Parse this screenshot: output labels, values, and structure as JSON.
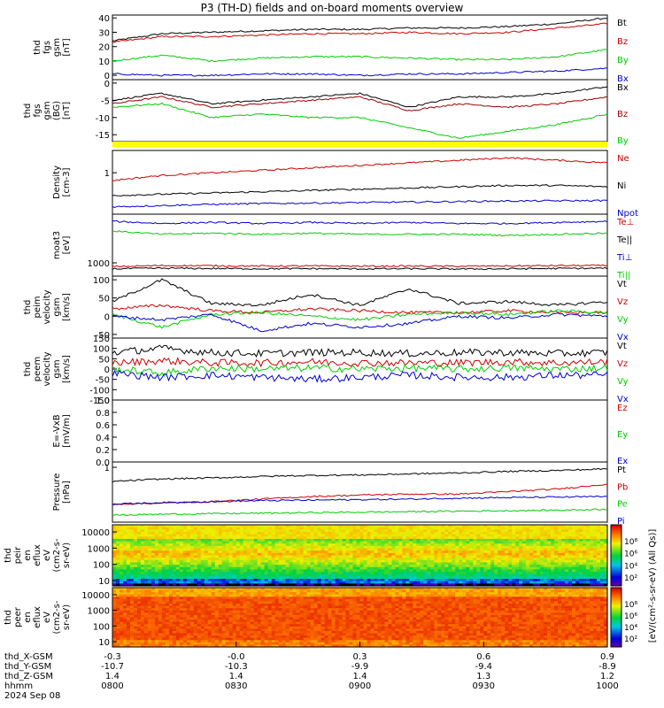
{
  "title": "P3 (TH-D) fields and on-board moments overview",
  "chart_data": [
    {
      "type": "line",
      "ylabel": [
        "thd",
        "fgs",
        "gsm",
        "[nT]"
      ],
      "yticks": [
        "40",
        "30",
        "20",
        "10",
        "0"
      ],
      "ylim": [
        -3,
        42
      ],
      "series": [
        {
          "name": "Bt",
          "color": "#000000",
          "values": [
            24,
            29,
            30,
            31,
            32,
            32,
            33,
            33,
            34,
            36,
            40
          ]
        },
        {
          "name": "Bz",
          "color": "#cc0000",
          "values": [
            23,
            27,
            27,
            28,
            29,
            29,
            30,
            29,
            30,
            33,
            36
          ]
        },
        {
          "name": "By",
          "color": "#00cc00",
          "values": [
            10,
            14,
            10,
            12,
            13,
            13,
            12,
            11,
            11,
            13,
            18
          ]
        },
        {
          "name": "Bx",
          "color": "#0000cc",
          "values": [
            1,
            0,
            0,
            1,
            1,
            0,
            1,
            1,
            2,
            3,
            5
          ]
        }
      ]
    },
    {
      "type": "line",
      "ylabel": [
        "thd",
        "fgs",
        "gsm",
        "(BG)",
        "[nT]"
      ],
      "yticks": [
        "0",
        "-5",
        "-10",
        "-15"
      ],
      "ylim": [
        -17,
        1
      ],
      "series": [
        {
          "name": "Bx",
          "color": "#000000",
          "values": [
            -5,
            -3,
            -6,
            -5,
            -4,
            -3,
            -7,
            -4,
            -4,
            -3,
            -1
          ]
        },
        {
          "name": "Bz",
          "color": "#990000",
          "values": [
            -6,
            -4,
            -7,
            -6,
            -5,
            -4,
            -8,
            -6,
            -7,
            -6,
            -4
          ]
        },
        {
          "name": "By",
          "color": "#00cc00",
          "values": [
            -7,
            -6,
            -10,
            -9,
            -10,
            -10,
            -13,
            -16,
            -14,
            -12,
            -9
          ]
        }
      ]
    },
    {
      "type": "line",
      "ylabel": [
        "Density",
        "[cm-3]"
      ],
      "yticks": [
        "1"
      ],
      "series": [
        {
          "name": "Ne",
          "color": "#cc0000",
          "values": [
            1.2,
            1.4,
            1.5,
            1.6,
            1.7,
            1.8,
            1.9,
            2.0,
            2.1,
            2.0,
            1.9
          ]
        },
        {
          "name": "Ni",
          "color": "#000000",
          "values": [
            0.6,
            0.65,
            0.7,
            0.75,
            0.8,
            0.85,
            0.9,
            0.95,
            1.0,
            1.0,
            0.95
          ]
        },
        {
          "name": "Npot",
          "color": "#0000cc",
          "values": [
            0.15,
            0.2,
            0.25,
            0.28,
            0.3,
            0.32,
            0.34,
            0.36,
            0.38,
            0.39,
            0.4
          ]
        }
      ]
    },
    {
      "type": "line",
      "ylabel": [
        "moat3",
        "[eV]"
      ],
      "yticks": [
        "1000"
      ],
      "series": [
        {
          "name": "Te⊥",
          "color": "#cc0000",
          "values": [
            1000,
            1100,
            1080,
            1050,
            1060,
            1040,
            1050,
            1030,
            1060,
            1090,
            1100
          ]
        },
        {
          "name": "Te||",
          "color": "#000000",
          "values": [
            800,
            850,
            820,
            800,
            810,
            790,
            800,
            780,
            790,
            830,
            850
          ]
        },
        {
          "name": "Ti⊥",
          "color": "#0000cc",
          "values": [
            5200,
            5000,
            5100,
            5000,
            5100,
            5000,
            5100,
            5000,
            5000,
            5100,
            5200
          ]
        },
        {
          "name": "Ti||",
          "color": "#00cc00",
          "values": [
            4300,
            4000,
            4100,
            4000,
            4100,
            4000,
            4000,
            4000,
            3900,
            4000,
            4100
          ]
        }
      ]
    },
    {
      "type": "line",
      "ylabel": [
        "thd",
        "peim",
        "velocity",
        "gsm",
        "[km/s]"
      ],
      "yticks": [
        "100",
        "50",
        "0",
        "-50"
      ],
      "ylim": [
        -60,
        110
      ],
      "series": [
        {
          "name": "Vt",
          "color": "#000000",
          "values": [
            40,
            100,
            35,
            30,
            60,
            30,
            75,
            35,
            40,
            30,
            40
          ]
        },
        {
          "name": "Vz",
          "color": "#cc0000",
          "values": [
            20,
            30,
            15,
            10,
            20,
            15,
            10,
            10,
            15,
            10,
            10
          ]
        },
        {
          "name": "Vy",
          "color": "#00cc00",
          "values": [
            5,
            -30,
            5,
            10,
            0,
            -10,
            5,
            10,
            5,
            15,
            10
          ]
        },
        {
          "name": "Vx",
          "color": "#0000cc",
          "values": [
            0,
            -10,
            5,
            -40,
            -20,
            -30,
            -20,
            0,
            -5,
            5,
            0
          ]
        }
      ]
    },
    {
      "type": "line",
      "ylabel": [
        "thd",
        "peem",
        "velocity",
        "gsm",
        "[km/s]"
      ],
      "yticks": [
        "150",
        "100",
        "50",
        "0",
        "-50",
        "-100",
        "-150"
      ],
      "ylim": [
        -150,
        150
      ],
      "series": [
        {
          "name": "Vt",
          "color": "#000000",
          "values": [
            80,
            100,
            80,
            75,
            80,
            80,
            75,
            80,
            80,
            75,
            80
          ]
        },
        {
          "name": "Vz",
          "color": "#cc0000",
          "values": [
            30,
            40,
            30,
            30,
            35,
            30,
            30,
            30,
            35,
            30,
            35
          ]
        },
        {
          "name": "Vy",
          "color": "#00cc00",
          "values": [
            0,
            -20,
            5,
            0,
            5,
            0,
            5,
            0,
            5,
            0,
            5
          ]
        },
        {
          "name": "Vx",
          "color": "#0000cc",
          "values": [
            -20,
            -40,
            -30,
            -40,
            -50,
            -40,
            -30,
            -40,
            -40,
            -30,
            -30
          ]
        }
      ]
    },
    {
      "type": "line",
      "ylabel": [
        "E=-VxB",
        "[mV/m]"
      ],
      "yticks": [
        "1.0",
        "0.8",
        "0.6",
        "0.4",
        "0.2",
        "0.0"
      ],
      "ylim": [
        0,
        1
      ],
      "series": [
        {
          "name": "Ez",
          "color": "#cc0000",
          "values": []
        },
        {
          "name": "Ey",
          "color": "#00cc00",
          "values": []
        },
        {
          "name": "Ex",
          "color": "#0000cc",
          "values": []
        }
      ]
    },
    {
      "type": "line",
      "ylabel": [
        "Pressure",
        "[nPa]"
      ],
      "yticks": [
        "1"
      ],
      "series": [
        {
          "name": "Pt",
          "color": "#000000",
          "values": [
            0.75,
            0.8,
            0.82,
            0.85,
            0.87,
            0.88,
            0.9,
            0.92,
            0.95,
            0.97,
            1.0
          ]
        },
        {
          "name": "Pb",
          "color": "#cc0000",
          "values": [
            0.3,
            0.32,
            0.35,
            0.4,
            0.45,
            0.48,
            0.5,
            0.5,
            0.55,
            0.6,
            0.7
          ]
        },
        {
          "name": "Pe",
          "color": "#00cc00",
          "values": [
            0.08,
            0.1,
            0.11,
            0.12,
            0.13,
            0.14,
            0.15,
            0.16,
            0.17,
            0.18,
            0.2
          ]
        },
        {
          "name": "Pi",
          "color": "#0000cc",
          "values": [
            0.3,
            0.33,
            0.35,
            0.37,
            0.38,
            0.39,
            0.4,
            0.42,
            0.43,
            0.44,
            0.45
          ]
        }
      ]
    },
    {
      "type": "heatmap",
      "ylabel": [
        "thd",
        "peir",
        "en",
        "eflux",
        "eV",
        "(cm2-s-",
        "sr-eV)"
      ],
      "yticks": [
        "10000",
        "1000",
        "100",
        "10"
      ],
      "scale": "log"
    },
    {
      "type": "heatmap",
      "ylabel": [
        "thd",
        "peer",
        "en",
        "eflux",
        "eV",
        "(cm2-s-",
        "sr-eV)"
      ],
      "yticks": [
        "10000",
        "1000",
        "100",
        "10"
      ],
      "scale": "log"
    }
  ],
  "colorbar": {
    "label": "[eV/(cm²-s-sr-eV) (All Qs)]",
    "upper_ticks": [
      "10⁸",
      "10⁶",
      "10⁴",
      "10²"
    ],
    "lower_ticks": [
      "10⁸",
      "10⁶",
      "10⁴",
      "10²"
    ]
  },
  "x_axis": {
    "rows": [
      {
        "label": "thd_X-GSM",
        "values": [
          "-0.3",
          "-0.0",
          "0.3",
          "0.6",
          "0.9"
        ]
      },
      {
        "label": "thd_Y-GSM",
        "values": [
          "-10.7",
          "-10.3",
          "-9.9",
          "-9.4",
          "-8.9"
        ]
      },
      {
        "label": "thd_Z-GSM",
        "values": [
          "1.4",
          "1.4",
          "1.4",
          "1.3",
          "1.2"
        ]
      },
      {
        "label": "hhmm",
        "values": [
          "0800",
          "0830",
          "0900",
          "0930",
          "1000"
        ]
      }
    ],
    "date": "2024 Sep 08"
  }
}
